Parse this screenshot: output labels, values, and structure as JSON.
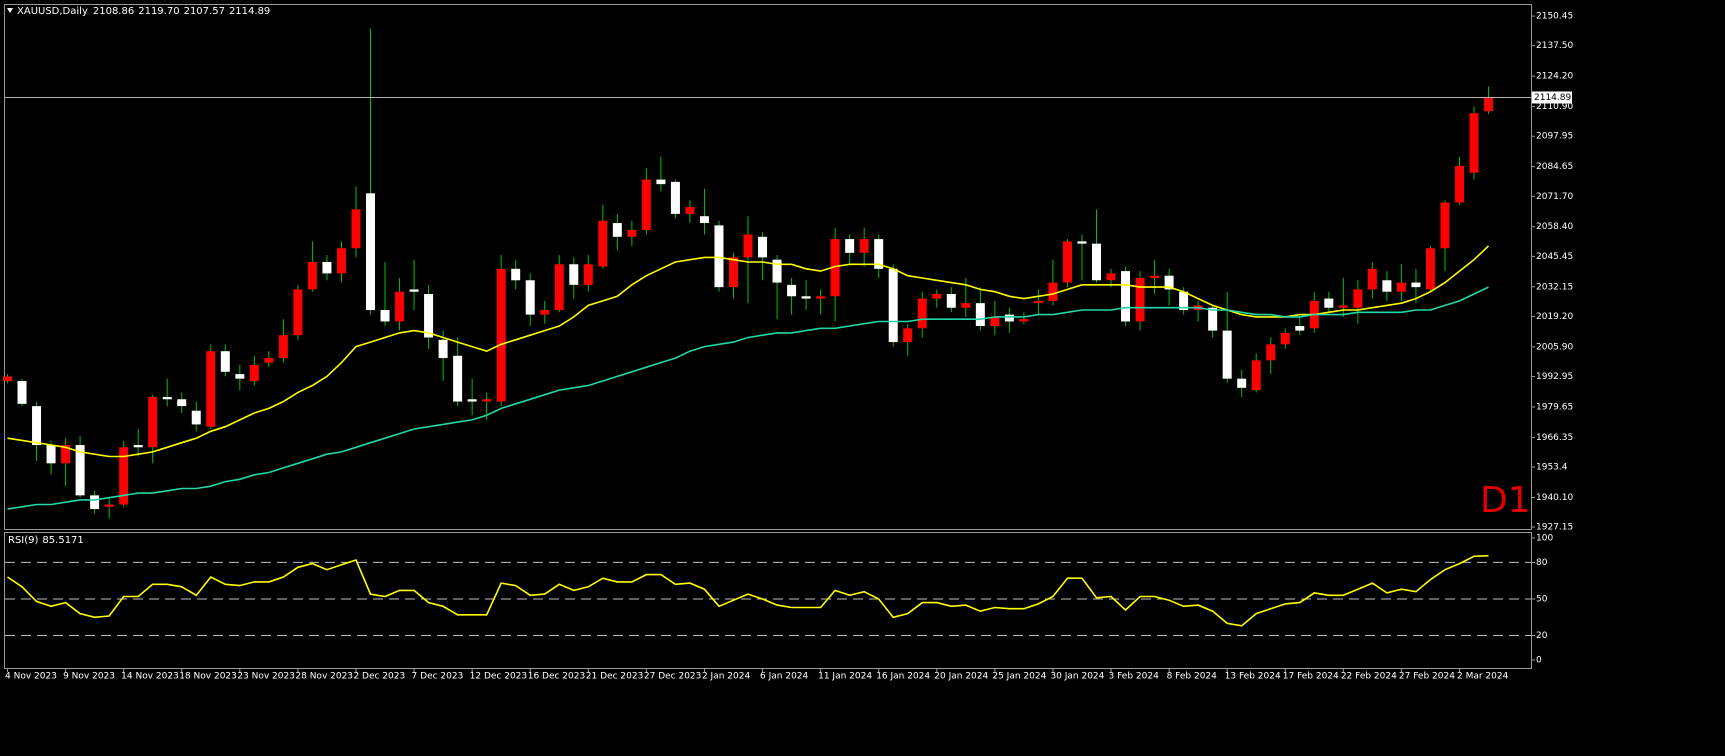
{
  "chart_data": [
    {
      "type": "candlestick",
      "title": "XAUUSD,Daily",
      "last_labels": [
        "2108.86",
        "2119.70",
        "2107.57",
        "2114.89"
      ],
      "annotation": "D1",
      "categories": [
        "4 Nov 2023",
        null,
        null,
        null,
        "9 Nov 2023",
        null,
        null,
        null,
        "14 Nov 2023",
        null,
        null,
        null,
        "18 Nov 2023",
        null,
        null,
        null,
        "23 Nov 2023",
        null,
        null,
        null,
        "28 Nov 2023",
        null,
        null,
        null,
        "2 Dec 2023",
        null,
        null,
        null,
        "7 Dec 2023",
        null,
        null,
        null,
        "12 Dec 2023",
        null,
        null,
        null,
        "16 Dec 2023",
        null,
        null,
        null,
        "21 Dec 2023",
        null,
        null,
        null,
        "27 Dec 2023",
        null,
        null,
        null,
        "2 Jan 2024",
        null,
        null,
        null,
        "6 Jan 2024",
        null,
        null,
        null,
        "11 Jan 2024",
        null,
        null,
        null,
        "16 Jan 2024",
        null,
        null,
        null,
        "20 Jan 2024",
        null,
        null,
        null,
        "25 Jan 2024",
        null,
        null,
        null,
        "30 Jan 2024",
        null,
        null,
        null,
        "3 Feb 2024",
        null,
        null,
        null,
        "8 Feb 2024",
        null,
        null,
        null,
        "13 Feb 2024",
        null,
        null,
        null,
        "17 Feb 2024",
        null,
        null,
        null,
        "22 Feb 2024",
        null,
        null,
        null,
        "27 Feb 2024",
        null,
        null,
        null,
        "2 Mar 2024",
        null,
        null
      ],
      "open": [
        1991,
        1991,
        1980,
        1963,
        1955,
        1963,
        1941,
        1936,
        1937,
        1963,
        1962,
        1984,
        1983,
        1978,
        1971,
        2004,
        1994,
        1991,
        1999,
        2001,
        2011,
        2031,
        2043,
        2038,
        2049,
        2073,
        2022,
        2017,
        2031,
        2029,
        2009,
        2002,
        1983,
        1982,
        1982,
        2040,
        2035,
        2020,
        2022,
        2042,
        2033,
        2041,
        2060,
        2054,
        2057,
        2079,
        2078,
        2064,
        2063,
        2059,
        2032,
        2045,
        2054,
        2044,
        2033,
        2028,
        2027,
        2028,
        2053,
        2047,
        2053,
        2040,
        2008,
        2014,
        2027,
        2029,
        2023,
        2025,
        2015,
        2020,
        2017,
        2025,
        2026,
        2034,
        2052,
        2051,
        2035,
        2039,
        2017,
        2036,
        2037,
        2030,
        2022,
        2023,
        2013,
        1992,
        1987,
        2000,
        2007,
        2015,
        2014,
        2027,
        2023,
        2023,
        2031,
        2035,
        2030,
        2034,
        2031,
        2049,
        2069,
        2082,
        2108.86
      ],
      "high": [
        1994,
        1992,
        1982,
        1965,
        1966,
        1967,
        1943,
        1940,
        1965,
        1970,
        1985,
        1992,
        1986,
        1982,
        2007,
        2007,
        1998,
        2002,
        2004,
        2018,
        2033,
        2052,
        2046,
        2052,
        2076,
        2145,
        2043,
        2036,
        2044,
        2033,
        2013,
        2010,
        1992,
        1986,
        2046,
        2044,
        2038,
        2026,
        2046,
        2045,
        2046,
        2068,
        2064,
        2061,
        2084,
        2089,
        2079,
        2070,
        2075,
        2061,
        2047,
        2063,
        2056,
        2046,
        2036,
        2035,
        2031,
        2058,
        2055,
        2058,
        2055,
        2042,
        2016,
        2030,
        2031,
        2032,
        2036,
        2032,
        2026,
        2023,
        2021,
        2031,
        2044,
        2053,
        2055,
        2066,
        2040,
        2041,
        2039,
        2044,
        2040,
        2032,
        2026,
        2024,
        2030,
        1996,
        2003,
        2010,
        2014,
        2019,
        2030,
        2030,
        2036,
        2035,
        2043,
        2039,
        2042,
        2040,
        2050,
        2070,
        2089,
        2111,
        2119.7
      ],
      "low": [
        1990,
        1980,
        1956,
        1950,
        1945,
        1940,
        1933,
        1931,
        1936,
        1958,
        1955,
        1980,
        1977,
        1969,
        1970,
        1993,
        1987,
        1989,
        1997,
        1999,
        2009,
        2030,
        2035,
        2034,
        2045,
        2020,
        2015,
        2013,
        2022,
        2005,
        1991,
        1980,
        1976,
        1974,
        1980,
        2031,
        2015,
        2016,
        2021,
        2027,
        2030,
        2040,
        2048,
        2050,
        2055,
        2074,
        2062,
        2060,
        2055,
        2030,
        2027,
        2025,
        2035,
        2018,
        2020,
        2022,
        2020,
        2017,
        2042,
        2041,
        2036,
        2006,
        2002,
        2010,
        2023,
        2021,
        2019,
        2013,
        2011,
        2012,
        2016,
        2020,
        2024,
        2032,
        2035,
        2034,
        2032,
        2015,
        2013,
        2029,
        2024,
        2020,
        2017,
        2010,
        1990,
        1984,
        1986,
        1994,
        2005,
        2011,
        2012,
        2021,
        2019,
        2016,
        2027,
        2026,
        2026,
        2025,
        2030,
        2039,
        2068,
        2079,
        2107.57
      ],
      "close": [
        1993,
        1981,
        1963,
        1955,
        1963,
        1941,
        1935,
        1937,
        1962,
        1962,
        1984,
        1983,
        1980,
        1972,
        2004,
        1995,
        1992,
        1998,
        2001,
        2011,
        2031,
        2043,
        2038,
        2049,
        2066,
        2022,
        2017,
        2030,
        2030,
        2010,
        2001,
        1982,
        1982,
        1983,
        2040,
        2035,
        2020,
        2022,
        2042,
        2033,
        2042,
        2061,
        2054,
        2057,
        2079,
        2077,
        2064,
        2067,
        2060,
        2032,
        2045,
        2055,
        2045,
        2034,
        2028,
        2027,
        2028,
        2053,
        2047,
        2053,
        2040,
        2008,
        2014,
        2027,
        2029,
        2023,
        2025,
        2015,
        2019,
        2017,
        2018,
        2026,
        2034,
        2052,
        2051,
        2035,
        2038,
        2017,
        2036,
        2037,
        2031,
        2022,
        2024,
        2013,
        1992,
        1988,
        2000,
        2007,
        2012,
        2013,
        2026,
        2023,
        2024,
        2031,
        2040,
        2030,
        2034,
        2032,
        2049,
        2069,
        2085,
        2108,
        2114.89
      ],
      "up_color": "#ff0000",
      "down_color": "#ffffff",
      "wick_color": "#00c000",
      "series": [
        {
          "color": "#ffff00",
          "values": [
            1966,
            1965,
            1964,
            1963,
            1962,
            1960,
            1959,
            1958,
            1958,
            1959,
            1960,
            1962,
            1964,
            1966,
            1969,
            1971,
            1974,
            1977,
            1979,
            1982,
            1986,
            1989,
            1993,
            1999,
            2006,
            2008,
            2010,
            2012,
            2013,
            2012,
            2010,
            2008,
            2006,
            2004,
            2007,
            2009,
            2011,
            2013,
            2015,
            2019,
            2024,
            2026,
            2028,
            2033,
            2037,
            2040,
            2043,
            2044,
            2045,
            2045,
            2044,
            2043,
            2043,
            2042,
            2042,
            2040,
            2039,
            2041,
            2042,
            2042,
            2042,
            2040,
            2037,
            2036,
            2035,
            2034,
            2033,
            2031,
            2030,
            2028,
            2027,
            2028,
            2029,
            2031,
            2033,
            2033,
            2033,
            2033,
            2032,
            2032,
            2032,
            2030,
            2027,
            2024,
            2022,
            2020,
            2019,
            2019,
            2019,
            2020,
            2020,
            2021,
            2022,
            2022,
            2023,
            2024,
            2025,
            2027,
            2030,
            2034,
            2039,
            2044,
            2050
          ]
        },
        {
          "color": "#20d8a8",
          "values": [
            1935,
            1936,
            1937,
            1937,
            1938,
            1939,
            1939,
            1940,
            1941,
            1942,
            1942,
            1943,
            1944,
            1944,
            1945,
            1947,
            1948,
            1950,
            1951,
            1953,
            1955,
            1957,
            1959,
            1960,
            1962,
            1964,
            1966,
            1968,
            1970,
            1971,
            1972,
            1973,
            1974,
            1976,
            1979,
            1981,
            1983,
            1985,
            1987,
            1988,
            1989,
            1991,
            1993,
            1995,
            1997,
            1999,
            2001,
            2004,
            2006,
            2007,
            2008,
            2010,
            2011,
            2012,
            2012,
            2013,
            2014,
            2014,
            2015,
            2016,
            2017,
            2017,
            2017,
            2018,
            2018,
            2018,
            2018,
            2018,
            2019,
            2019,
            2019,
            2020,
            2020,
            2021,
            2022,
            2022,
            2022,
            2023,
            2023,
            2023,
            2023,
            2023,
            2023,
            2022,
            2022,
            2021,
            2020,
            2020,
            2019,
            2019,
            2020,
            2020,
            2020,
            2021,
            2021,
            2021,
            2021,
            2022,
            2022,
            2024,
            2026,
            2029,
            2032
          ]
        }
      ],
      "price_line": true,
      "ylim": [
        1926.3,
        2155.3
      ],
      "yticks": [
        2150.45,
        {
          "value": 2137.5,
          "label": "2137.50"
        },
        {
          "value": 2124.2,
          "label": "2124.20"
        },
        {
          "value": 2110.9,
          "label": "2110.90"
        },
        2097.95,
        2084.65,
        {
          "value": 2071.7,
          "label": "2071.70"
        },
        {
          "value": 2058.4,
          "label": "2058.40"
        },
        2045.45,
        2032.15,
        {
          "value": 2019.2,
          "label": "2019.20"
        },
        {
          "value": 2005.9,
          "label": "2005.90"
        },
        1992.95,
        1979.65,
        1966.35,
        1953.4,
        {
          "value": 1940.1,
          "label": "1940.10"
        },
        1927.15
      ]
    },
    {
      "type": "line",
      "title": "RSI(9)",
      "values": [
        68,
        60,
        48,
        44,
        47,
        38,
        35,
        36,
        52,
        52,
        62,
        62,
        60,
        53,
        68,
        62,
        61,
        64,
        64,
        68,
        76,
        79,
        74,
        78,
        82,
        54,
        52,
        57,
        57,
        47,
        44,
        37,
        37,
        37,
        63,
        61,
        53,
        54,
        62,
        57,
        60,
        67,
        64,
        64,
        70,
        70,
        62,
        63,
        58,
        44,
        49,
        54,
        50,
        45,
        43,
        43,
        43,
        57,
        53,
        56,
        50,
        35,
        38,
        47,
        47,
        44,
        45,
        40,
        43,
        42,
        42,
        46,
        52,
        67,
        67,
        51,
        52,
        41,
        52,
        52,
        49,
        44,
        45,
        40,
        30,
        28,
        38,
        42,
        46,
        47,
        55,
        53,
        53,
        58,
        63,
        55,
        58,
        56,
        66,
        74,
        79,
        85,
        85.5171
      ],
      "color": "#ffff00",
      "ylim": [
        -6.6,
        104.1
      ],
      "yticks": [
        0,
        20,
        50,
        80,
        100
      ],
      "levels": [
        20,
        50,
        80
      ]
    }
  ]
}
